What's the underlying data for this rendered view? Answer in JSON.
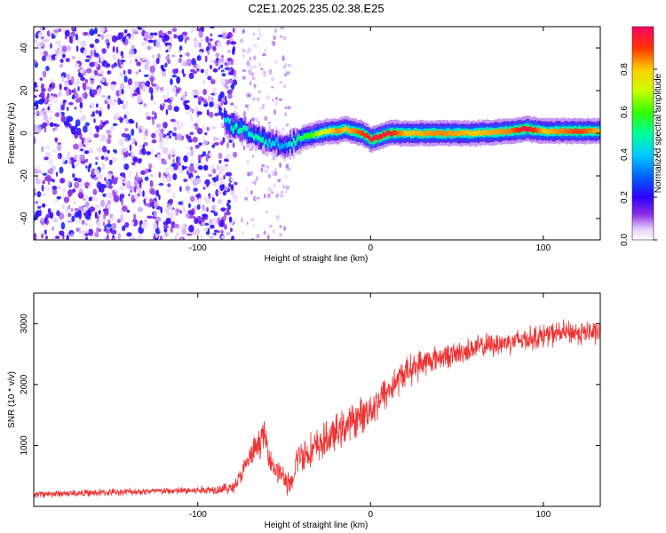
{
  "figure_title": "C2E1.2025.235.02.38.E25",
  "chart_data": [
    {
      "type": "heatmap",
      "title": "C2E1.2025.235.02.38.E25",
      "xlabel": "Height of straight line (km)",
      "ylabel": "Frequency (Hz)",
      "xlim": [
        -195,
        133
      ],
      "ylim": [
        -50,
        50
      ],
      "xticks": [
        -100,
        0,
        100
      ],
      "yticks": [
        -40,
        -20,
        0,
        20,
        40
      ],
      "colorbar": {
        "label": "Normalized spectral amplitude",
        "range": [
          0,
          1
        ],
        "ticks": [
          0.0,
          0.2,
          0.4,
          0.6,
          0.8
        ],
        "tick_labels": [
          "0.0",
          "0.2",
          "0.4",
          "0.6",
          "0.8"
        ]
      },
      "signal_trace": {
        "description_values": "frequency centroid of the strong narrowband signal vs height",
        "x": [
          -85,
          -80,
          -75,
          -70,
          -65,
          -60,
          -55,
          -50,
          -45,
          -40,
          -35,
          -30,
          -25,
          -20,
          -15,
          -10,
          -5,
          0,
          10,
          20,
          40,
          60,
          80,
          90,
          100,
          110,
          120,
          133
        ],
        "y": [
          6,
          3,
          2,
          0,
          -2,
          -4,
          -5,
          -6,
          -4,
          -2,
          -1,
          0,
          1,
          1,
          2,
          1,
          0,
          -3,
          0,
          0,
          0,
          0,
          1,
          2,
          1,
          1,
          1,
          1
        ],
        "peak_amplitude": [
          0.4,
          0.5,
          0.5,
          0.45,
          0.5,
          0.45,
          0.4,
          0.35,
          0.5,
          0.55,
          0.6,
          0.7,
          0.75,
          0.85,
          0.8,
          0.85,
          0.9,
          0.95,
          0.95,
          0.8,
          0.85,
          0.8,
          0.85,
          0.98,
          0.8,
          0.85,
          0.9,
          0.8
        ]
      },
      "noise_region": {
        "x_from": -195,
        "x_to": -80,
        "amplitude_range": [
          0.05,
          0.25
        ]
      }
    },
    {
      "type": "line",
      "xlabel": "Height of straight line (km)",
      "ylabel": "SNR (10 * v/v)",
      "xlim": [
        -195,
        133
      ],
      "ylim": [
        0,
        3500
      ],
      "xticks": [
        -100,
        0,
        100
      ],
      "yticks": [
        1000,
        2000,
        3000
      ],
      "series": [
        {
          "name": "SNR",
          "color": "#ee3333",
          "x": [
            -195,
            -180,
            -160,
            -140,
            -120,
            -100,
            -90,
            -80,
            -75,
            -70,
            -65,
            -62,
            -60,
            -57,
            -55,
            -52,
            -50,
            -47,
            -45,
            -43,
            -40,
            -35,
            -30,
            -20,
            -10,
            0,
            10,
            20,
            30,
            40,
            50,
            60,
            70,
            80,
            90,
            100,
            110,
            120,
            133
          ],
          "values": [
            200,
            210,
            220,
            240,
            250,
            260,
            280,
            300,
            500,
            800,
            1000,
            1200,
            1000,
            700,
            600,
            550,
            450,
            350,
            300,
            800,
            850,
            900,
            1000,
            1200,
            1400,
            1600,
            1900,
            2200,
            2350,
            2450,
            2500,
            2600,
            2650,
            2700,
            2750,
            2800,
            2850,
            2850,
            2850
          ],
          "noise_amplitude": [
            60,
            60,
            60,
            60,
            60,
            70,
            80,
            100,
            150,
            200,
            250,
            250,
            250,
            200,
            200,
            200,
            200,
            200,
            200,
            250,
            300,
            300,
            300,
            300,
            300,
            300,
            300,
            250,
            250,
            200,
            200,
            200,
            200,
            200,
            200,
            200,
            200,
            200,
            200
          ]
        }
      ]
    }
  ]
}
